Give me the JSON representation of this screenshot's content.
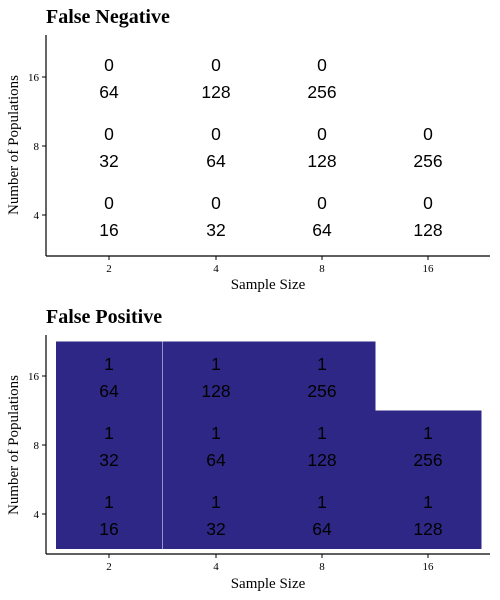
{
  "chart_data": [
    {
      "type": "heatmap",
      "title": "False Negative",
      "xlabel": "Sample Size",
      "ylabel": "Number of Populations",
      "x_ticks": [
        "2",
        "4",
        "8",
        "16"
      ],
      "y_ticks": [
        "4",
        "8",
        "16"
      ],
      "fill_color": "#2e2785",
      "cells": [
        {
          "x": "2",
          "y": "16",
          "value": 0,
          "count": 64
        },
        {
          "x": "4",
          "y": "16",
          "value": 0,
          "count": 128
        },
        {
          "x": "8",
          "y": "16",
          "value": 0,
          "count": 256
        },
        {
          "x": "2",
          "y": "8",
          "value": 0,
          "count": 32
        },
        {
          "x": "4",
          "y": "8",
          "value": 0,
          "count": 64
        },
        {
          "x": "8",
          "y": "8",
          "value": 0,
          "count": 128
        },
        {
          "x": "16",
          "y": "8",
          "value": 0,
          "count": 256
        },
        {
          "x": "2",
          "y": "4",
          "value": 0,
          "count": 16
        },
        {
          "x": "4",
          "y": "4",
          "value": 0,
          "count": 32
        },
        {
          "x": "8",
          "y": "4",
          "value": 0,
          "count": 64
        },
        {
          "x": "16",
          "y": "4",
          "value": 0,
          "count": 128
        }
      ]
    },
    {
      "type": "heatmap",
      "title": "False Positive",
      "xlabel": "Sample Size",
      "ylabel": "Number of Populations",
      "x_ticks": [
        "2",
        "4",
        "8",
        "16"
      ],
      "y_ticks": [
        "4",
        "8",
        "16"
      ],
      "fill_color": "#2e2785",
      "cells": [
        {
          "x": "2",
          "y": "16",
          "value": 1,
          "count": 64
        },
        {
          "x": "4",
          "y": "16",
          "value": 1,
          "count": 128
        },
        {
          "x": "8",
          "y": "16",
          "value": 1,
          "count": 256
        },
        {
          "x": "2",
          "y": "8",
          "value": 1,
          "count": 32
        },
        {
          "x": "4",
          "y": "8",
          "value": 1,
          "count": 64
        },
        {
          "x": "8",
          "y": "8",
          "value": 1,
          "count": 128
        },
        {
          "x": "16",
          "y": "8",
          "value": 1,
          "count": 256
        },
        {
          "x": "2",
          "y": "4",
          "value": 1,
          "count": 16
        },
        {
          "x": "4",
          "y": "4",
          "value": 1,
          "count": 32
        },
        {
          "x": "8",
          "y": "4",
          "value": 1,
          "count": 64
        },
        {
          "x": "16",
          "y": "4",
          "value": 1,
          "count": 128
        }
      ]
    }
  ]
}
